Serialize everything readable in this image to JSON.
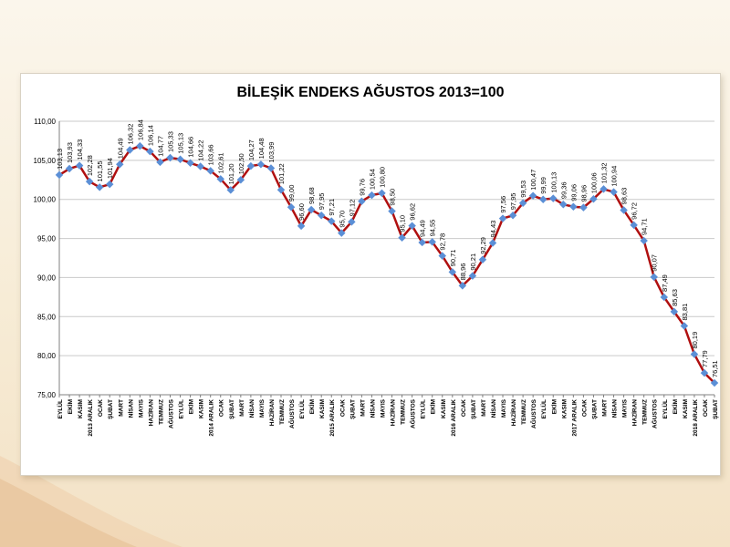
{
  "colors": {
    "line": "#b01010",
    "marker": "#5b8fd6",
    "grid": "#c9c9c9",
    "accent": "#e3b98a"
  },
  "chart_data": {
    "type": "line",
    "title": "BİLEŞİK ENDEKS AĞUSTOS 2013=100",
    "xlabel": "",
    "ylabel": "",
    "ylim": [
      75,
      110
    ],
    "yticks": [
      "75,00",
      "80,00",
      "85,00",
      "90,00",
      "95,00",
      "100,00",
      "105,00",
      "110,00"
    ],
    "grid": true,
    "legend": "none",
    "categories": [
      "EYLÜL",
      "EKİM",
      "KASIM",
      "2013 ARALIK",
      "OCAK",
      "ŞUBAT",
      "MART",
      "NİSAN",
      "MAYIS",
      "HAZİRAN",
      "TEMMUZ",
      "AĞUSTOS",
      "EYLÜL",
      "EKİM",
      "KASIM",
      "2014 ARALIK",
      "OCAK",
      "ŞUBAT",
      "MART",
      "NİSAN",
      "MAYIS",
      "HAZİRAN",
      "TEMMUZ",
      "AĞUSTOS",
      "EYLÜL",
      "EKİM",
      "KASIM",
      "2015 ARALIK",
      "OCAK",
      "ŞUBAT",
      "MART",
      "NİSAN",
      "MAYIS",
      "HAZİRAN",
      "TEMMUZ",
      "AĞUSTOS",
      "EYLÜL",
      "EKİM",
      "KASIM",
      "2016 ARALIK",
      "OCAK",
      "ŞUBAT",
      "MART",
      "NİSAN",
      "MAYIS",
      "HAZİRAN",
      "TEMMUZ",
      "AĞUSTOS",
      "EYLÜL",
      "EKİM",
      "KASIM",
      "2017 ARALIK",
      "OCAK",
      "ŞUBAT",
      "MART",
      "NİSAN",
      "MAYIS",
      "HAZİRAN",
      "TEMMUZ",
      "AĞUSTOS",
      "EYLÜL",
      "EKİM",
      "KASIM",
      "2018 ARALIK",
      "OCAK",
      "ŞUBAT"
    ],
    "series": [
      {
        "values": [
          103.13,
          103.93,
          104.33,
          102.28,
          101.55,
          101.94,
          104.49,
          106.32,
          106.84,
          106.14,
          104.77,
          105.33,
          105.13,
          104.66,
          104.22,
          103.66,
          102.61,
          101.2,
          102.5,
          104.27,
          104.48,
          103.99,
          101.22,
          99.0,
          96.6,
          98.68,
          97.95,
          97.21,
          95.7,
          97.12,
          99.76,
          100.54,
          100.8,
          98.5,
          95.1,
          96.62,
          94.49,
          94.55,
          92.78,
          90.71,
          88.96,
          90.21,
          92.29,
          94.43,
          97.56,
          97.95,
          99.53,
          100.47,
          99.99,
          100.13,
          99.36,
          99.06,
          98.96,
          100.06,
          101.32,
          100.94,
          98.63,
          96.72,
          94.71,
          90.07,
          87.49,
          85.63,
          83.81,
          80.19,
          77.79,
          76.51
        ],
        "labels": [
          "103,13",
          "103,93",
          "104,33",
          "102,28",
          "101,55",
          "101,94",
          "104,49",
          "106,32",
          "106,84",
          "106,14",
          "104,77",
          "105,33",
          "105,13",
          "104,66",
          "104,22",
          "103,66",
          "102,61",
          "101,20",
          "102,50",
          "104,27",
          "104,48",
          "103,99",
          "101,22",
          "99,00",
          "96,60",
          "98,68",
          "97,95",
          "97,21",
          "95,70",
          "97,12",
          "99,76",
          "100,54",
          "100,80",
          "98,50",
          "95,10",
          "96,62",
          "94,49",
          "94,55",
          "92,78",
          "90,71",
          "88,96",
          "90,21",
          "92,29",
          "94,43",
          "97,56",
          "97,95",
          "99,53",
          "100,47",
          "99,99",
          "100,13",
          "99,36",
          "99,06",
          "98,96",
          "100,06",
          "101,32",
          "100,94",
          "98,63",
          "96,72",
          "94,71",
          "90,07",
          "87,49",
          "85,63",
          "83,81",
          "80,19",
          "77,79",
          "76,51"
        ]
      }
    ]
  }
}
